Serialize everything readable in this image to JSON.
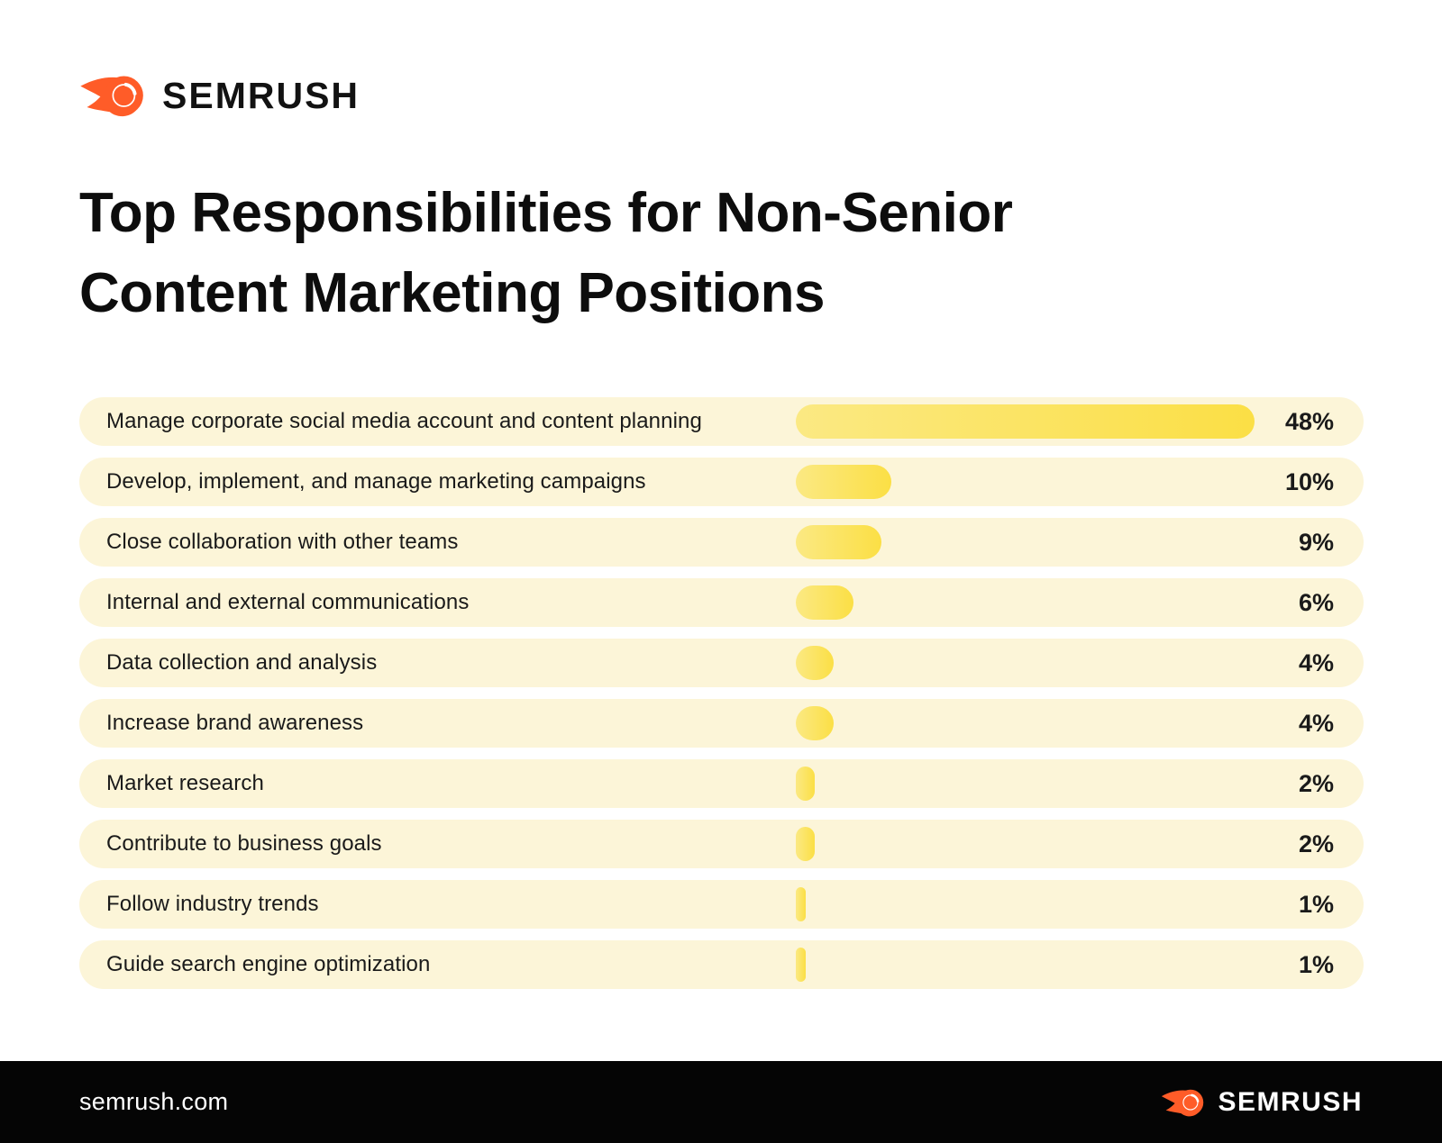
{
  "header": {
    "logo_text": "SEMRUSH"
  },
  "title": {
    "line1": "Top Responsibilities for Non-Senior",
    "line2": "Content Marketing Positions"
  },
  "chart_data": {
    "type": "bar",
    "orientation": "horizontal",
    "title": "Top Responsibilities for Non-Senior Content Marketing Positions",
    "xlabel": "",
    "ylabel": "",
    "unit": "%",
    "xlim": [
      0,
      50
    ],
    "grid": false,
    "legend": false,
    "categories": [
      "Manage corporate social media account and content planning",
      "Develop, implement, and manage marketing campaigns",
      "Close collaboration with other teams",
      "Internal and external communications",
      "Data collection and analysis",
      "Increase brand awareness",
      "Market research",
      "Contribute to business goals",
      "Follow industry trends",
      "Guide search engine optimization"
    ],
    "values": [
      48,
      10,
      9,
      6,
      4,
      4,
      2,
      2,
      1,
      1
    ],
    "value_labels": [
      "48%",
      "10%",
      "9%",
      "6%",
      "4%",
      "4%",
      "2%",
      "2%",
      "1%",
      "1%"
    ]
  },
  "colors": {
    "accent_orange": "#FF5C28",
    "row_background": "#FCF5D8",
    "bar_gradient_start": "#FBE983",
    "bar_gradient_end": "#FBDF45",
    "footer_background": "#050505",
    "text_dark": "#0d0d0d",
    "text_light": "#ffffff"
  },
  "footer": {
    "site": "semrush.com",
    "logo_text": "SEMRUSH"
  }
}
